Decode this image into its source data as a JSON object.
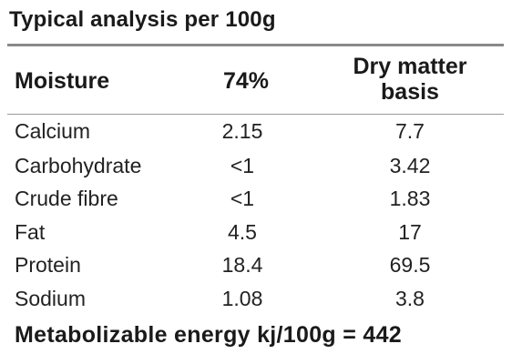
{
  "title": "Typical analysis per 100g",
  "header": {
    "col1": "Moisture",
    "col2": "74%",
    "col3_line1": "Dry matter",
    "col3_line2": "basis"
  },
  "rows": [
    {
      "name": "Calcium",
      "value": "2.15",
      "dry": "7.7"
    },
    {
      "name": "Carbohydrate",
      "value": "<1",
      "dry": "3.42"
    },
    {
      "name": "Crude fibre",
      "value": "<1",
      "dry": "1.83"
    },
    {
      "name": "Fat",
      "value": "4.5",
      "dry": "17"
    },
    {
      "name": "Protein",
      "value": "18.4",
      "dry": "69.5"
    },
    {
      "name": "Sodium",
      "value": "1.08",
      "dry": "3.8"
    }
  ],
  "footer": "Metabolizable energy kj/100g = 442"
}
